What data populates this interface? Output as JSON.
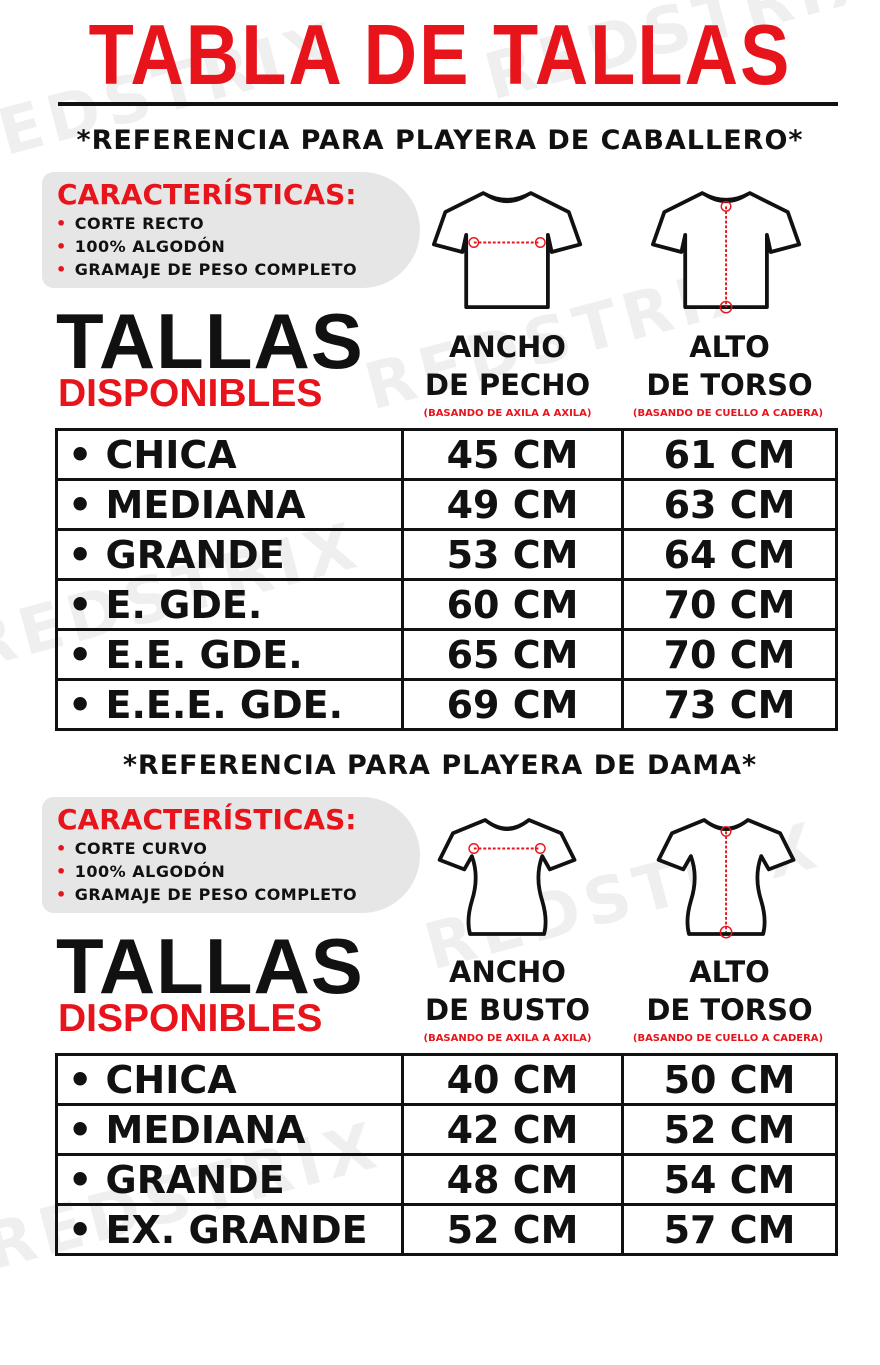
{
  "title": "TABLA DE TALLAS",
  "watermark": "REDSTRIX",
  "colors": {
    "accent": "#e8141b",
    "text": "#111111",
    "panel": "#e6e6e6"
  },
  "sections": [
    {
      "subtitle": "*REFERENCIA PARA PLAYERA DE CABALLERO*",
      "features_title": "CARACTERÍSTICAS:",
      "features": [
        "CORTE RECTO",
        "100% ALGODÓN",
        "GRAMAJE DE PESO COMPLETO"
      ],
      "shirt_icon": "mens-tshirt-icon",
      "tallas": "TALLAS",
      "disponibles": "DISPONIBLES",
      "col1": {
        "line1": "ANCHO",
        "line2": "DE PECHO",
        "note": "(BASANDO DE AXILA A AXILA)"
      },
      "col2": {
        "line1": "ALTO",
        "line2": "DE TORSO",
        "note": "(BASANDO DE CUELLO A CADERA)"
      },
      "rows": [
        {
          "size": "• CHICA",
          "a": "45 CM",
          "b": "61 CM"
        },
        {
          "size": "• MEDIANA",
          "a": "49 CM",
          "b": "63 CM"
        },
        {
          "size": "• GRANDE",
          "a": "53 CM",
          "b": "64 CM"
        },
        {
          "size": "• E. GDE.",
          "a": "60 CM",
          "b": "70 CM"
        },
        {
          "size": "• E.E. GDE.",
          "a": "65 CM",
          "b": "70 CM"
        },
        {
          "size": "• E.E.E. GDE.",
          "a": "69 CM",
          "b": "73 CM"
        }
      ]
    },
    {
      "subtitle": "*REFERENCIA PARA PLAYERA DE DAMA*",
      "features_title": "CARACTERÍSTICAS:",
      "features": [
        "CORTE CURVO",
        "100% ALGODÓN",
        "GRAMAJE DE PESO COMPLETO"
      ],
      "shirt_icon": "womens-tshirt-icon",
      "tallas": "TALLAS",
      "disponibles": "DISPONIBLES",
      "col1": {
        "line1": "ANCHO",
        "line2": "DE BUSTO",
        "note": "(BASANDO DE AXILA A AXILA)"
      },
      "col2": {
        "line1": "ALTO",
        "line2": "DE TORSO",
        "note": "(BASANDO DE CUELLO A CADERA)"
      },
      "rows": [
        {
          "size": "• CHICA",
          "a": "40 CM",
          "b": "50 CM"
        },
        {
          "size": "• MEDIANA",
          "a": "42 CM",
          "b": "52 CM"
        },
        {
          "size": "• GRANDE",
          "a": "48 CM",
          "b": "54 CM"
        },
        {
          "size": "• EX. GRANDE",
          "a": "52 CM",
          "b": "57 CM"
        }
      ]
    }
  ]
}
